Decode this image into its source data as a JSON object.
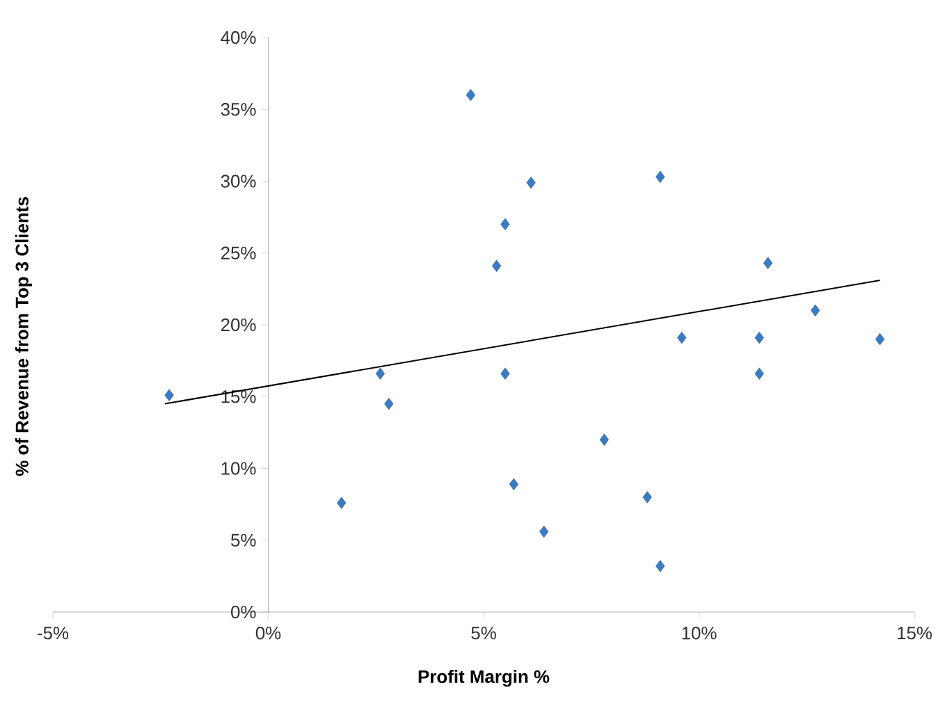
{
  "chart_data": {
    "type": "scatter",
    "xlabel": "Profit Margin %",
    "ylabel": "% of Revenue  from Top 3 Clients",
    "xlim": [
      -5,
      15
    ],
    "ylim": [
      0,
      40
    ],
    "xticks": [
      {
        "value": -5,
        "label": "-5%"
      },
      {
        "value": 0,
        "label": "0%"
      },
      {
        "value": 5,
        "label": "5%"
      },
      {
        "value": 10,
        "label": "10%"
      },
      {
        "value": 15,
        "label": "15%"
      }
    ],
    "yticks": [
      {
        "value": 0,
        "label": "0%"
      },
      {
        "value": 5,
        "label": "5%"
      },
      {
        "value": 10,
        "label": "10%"
      },
      {
        "value": 15,
        "label": "15%"
      },
      {
        "value": 20,
        "label": "20%"
      },
      {
        "value": 25,
        "label": "25%"
      },
      {
        "value": 30,
        "label": "30%"
      },
      {
        "value": 35,
        "label": "35%"
      },
      {
        "value": 40,
        "label": "40%"
      }
    ],
    "grid": false,
    "series": [
      {
        "type": "scatter",
        "color": "#3a7cc4",
        "marker": "diamond",
        "x": [
          -2.3,
          1.7,
          2.6,
          2.8,
          4.7,
          5.3,
          5.5,
          5.5,
          5.7,
          6.1,
          6.4,
          7.8,
          8.8,
          9.1,
          9.1,
          9.6,
          11.4,
          11.4,
          11.6,
          12.7,
          14.2
        ],
        "values": [
          15.1,
          7.6,
          16.6,
          14.5,
          36.0,
          24.1,
          27.0,
          16.6,
          8.9,
          29.9,
          5.6,
          12.0,
          8.0,
          30.3,
          3.2,
          19.1,
          19.1,
          16.6,
          24.3,
          21.0,
          19.0
        ]
      },
      {
        "type": "line",
        "color": "#000000",
        "marker": "none",
        "line_style": "solid",
        "x": [
          -2.4,
          14.2
        ],
        "values": [
          14.5,
          23.1
        ]
      }
    ]
  }
}
